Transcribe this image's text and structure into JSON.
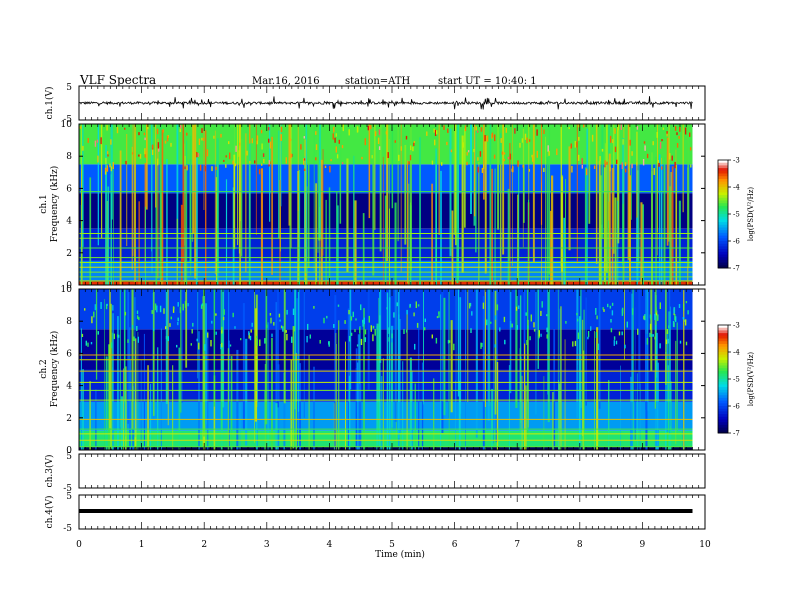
{
  "header": {
    "title": "VLF Spectra",
    "date": "Mar.16, 2016",
    "station": "station=ATH",
    "start": "start UT =  10:40: 1"
  },
  "colorbar_label": "log(PSD(V²/Hz)",
  "colors": {
    "background": "#ffffff",
    "waveform": "#000000",
    "channel_line": "#000000"
  },
  "chart_data": [
    {
      "id": "ch1-waveform",
      "type": "line",
      "title": "",
      "ylabel": "ch.1(V)",
      "xlabel": "",
      "xlim": [
        0,
        10
      ],
      "ylim": [
        -5,
        5
      ],
      "yticks": [
        "5",
        "-5"
      ],
      "data_extent_min": 9.8,
      "baseline": 0,
      "description": "noisy waveform around 0 V with spikes reaching about +/-2 V"
    },
    {
      "id": "ch1-spectrogram",
      "type": "heatmap",
      "ylabel": "ch.1 Frequency  (kHz)",
      "xlabel": "",
      "xlim": [
        0,
        10
      ],
      "ylim": [
        0,
        10
      ],
      "yticks": [
        "0",
        "2",
        "4",
        "6",
        "8",
        "10"
      ],
      "color_scale": {
        "label": "log(PSD(V²/Hz)",
        "range": [
          -7,
          -3
        ],
        "ticks": [
          "-3",
          "-4",
          "-5",
          "-6",
          "-7"
        ]
      },
      "data_extent_min": 9.8,
      "bands": [
        {
          "from_khz": 0,
          "to_khz": 0.3,
          "log_psd": -3.4
        },
        {
          "from_khz": 0.3,
          "to_khz": 1.5,
          "log_psd": -5.6
        },
        {
          "from_khz": 1.5,
          "to_khz": 3.5,
          "log_psd": -6.2
        },
        {
          "from_khz": 3.5,
          "to_khz": 5.7,
          "log_psd": -6.7
        },
        {
          "from_khz": 5.7,
          "to_khz": 7.5,
          "log_psd": -5.8
        },
        {
          "from_khz": 7.5,
          "to_khz": 10,
          "log_psd": -4.6
        }
      ],
      "lines_khz": [
        0.25,
        0.5,
        0.8,
        1.1,
        1.4,
        1.7,
        2.3,
        2.9,
        3.2,
        5.8
      ]
    },
    {
      "id": "ch2-spectrogram",
      "type": "heatmap",
      "ylabel": "ch.2 Frequency  (kHz)",
      "xlabel": "",
      "xlim": [
        0,
        10
      ],
      "ylim": [
        0,
        10
      ],
      "yticks": [
        "0",
        "2",
        "4",
        "6",
        "8",
        "10"
      ],
      "color_scale": {
        "label": "log(PSD(V²/Hz)",
        "range": [
          -7,
          -3
        ],
        "ticks": [
          "-3",
          "-4",
          "-5",
          "-6",
          "-7"
        ]
      },
      "data_extent_min": 9.8,
      "bands": [
        {
          "from_khz": 0,
          "to_khz": 0.2,
          "log_psd": -6.9
        },
        {
          "from_khz": 0.2,
          "to_khz": 1.2,
          "log_psd": -4.8
        },
        {
          "from_khz": 1.2,
          "to_khz": 3.0,
          "log_psd": -5.5
        },
        {
          "from_khz": 3.0,
          "to_khz": 5.0,
          "log_psd": -6.2
        },
        {
          "from_khz": 5.0,
          "to_khz": 7.5,
          "log_psd": -6.6
        },
        {
          "from_khz": 7.5,
          "to_khz": 10,
          "log_psd": -6.0
        }
      ],
      "lines_khz": [
        0.2,
        0.6,
        1.0,
        1.3,
        1.9,
        3.1,
        3.7,
        4.2,
        4.9,
        5.6,
        5.9
      ]
    },
    {
      "id": "ch3-waveform",
      "type": "line",
      "ylabel": "ch.3(V)",
      "xlim": [
        0,
        10
      ],
      "ylim": [
        -5,
        5
      ],
      "yticks": [
        "5",
        "-5"
      ],
      "has_data": false
    },
    {
      "id": "ch4-waveform",
      "type": "line",
      "ylabel": "ch.4(V)",
      "xlabel": "Time  (min)",
      "xlim": [
        0,
        10
      ],
      "ylim": [
        -5,
        5
      ],
      "yticks": [
        "5",
        "-5"
      ],
      "xticks": [
        "0",
        "1",
        "2",
        "3",
        "4",
        "5",
        "6",
        "7",
        "8",
        "9",
        "10"
      ],
      "data_extent_min": 9.8,
      "constant_value": 0
    }
  ]
}
